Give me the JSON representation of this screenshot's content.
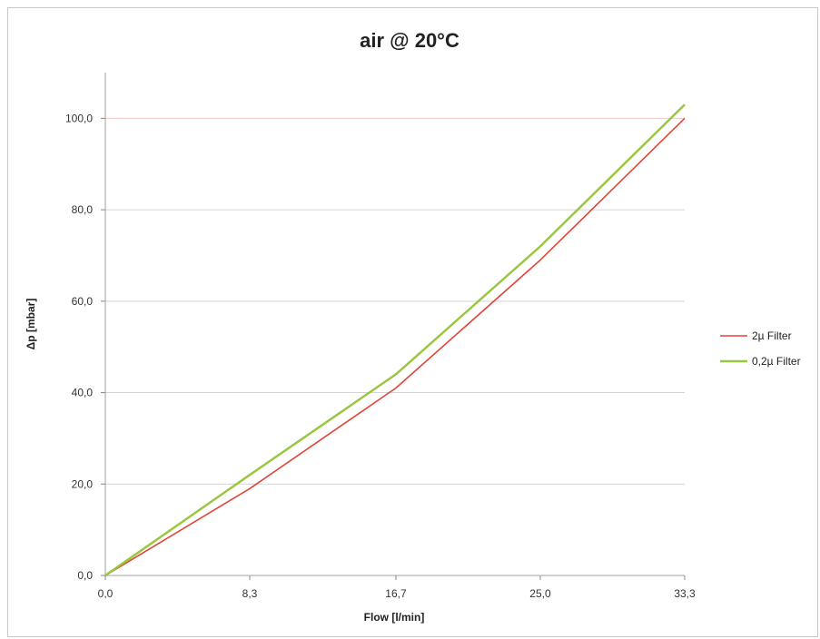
{
  "chart_data": {
    "type": "line",
    "title": "air @ 20°C",
    "xlabel": "Flow [l/min]",
    "ylabel": "Δp [mbar]",
    "x": [
      0.0,
      8.3,
      16.7,
      25.0,
      33.3
    ],
    "x_tick_labels": [
      "0,0",
      "8,3",
      "16,7",
      "25,0",
      "33,3"
    ],
    "y_tick_values": [
      0,
      20,
      40,
      60,
      80,
      100
    ],
    "y_tick_labels": [
      "0,0",
      "20,0",
      "40,0",
      "60,0",
      "80,0",
      "100,0"
    ],
    "xlim": [
      0.0,
      33.3
    ],
    "ylim": [
      0,
      110
    ],
    "grid": "horizontal",
    "legend_position": "right",
    "series": [
      {
        "name": "2µ Filter",
        "color": "#e0453a",
        "values": [
          0,
          19,
          41,
          69,
          100
        ]
      },
      {
        "name": "0,2µ Filter",
        "color": "#9bc640",
        "values": [
          0,
          22,
          44,
          72,
          103
        ]
      }
    ]
  }
}
